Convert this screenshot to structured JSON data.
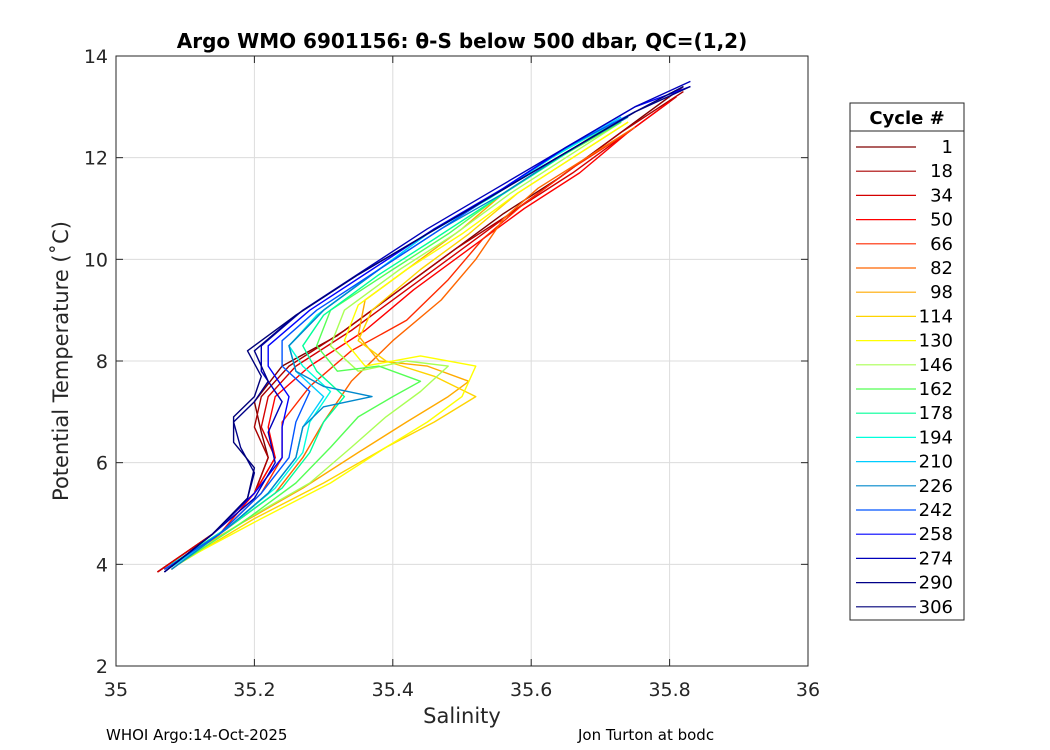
{
  "chart_data": {
    "type": "scatter",
    "title": "Argo WMO 6901156: θ-S below 500 dbar,  QC=(1,2)",
    "xlabel": "Salinity",
    "ylabel": "Potential Temperature (˚C)",
    "xlim": [
      35,
      36
    ],
    "ylim": [
      2,
      14
    ],
    "xticks": [
      "35",
      "35.2",
      "35.4",
      "35.6",
      "35.8",
      "36"
    ],
    "yticks": [
      "2",
      "4",
      "6",
      "8",
      "10",
      "12",
      "14"
    ],
    "grid": true,
    "legend_title": "Cycle #",
    "legend_position": "right",
    "series": [
      {
        "name": "1",
        "color": "#800000",
        "x": [
          35.06,
          35.14,
          35.2,
          35.22,
          35.21,
          35.2,
          35.24,
          35.32,
          35.4,
          35.48,
          35.56,
          35.64,
          35.72,
          35.82
        ],
        "y": [
          3.85,
          4.6,
          5.4,
          6.1,
          6.6,
          7.2,
          7.9,
          8.5,
          9.3,
          10.1,
          10.9,
          11.6,
          12.4,
          13.4
        ]
      },
      {
        "name": "18",
        "color": "#aa0000",
        "x": [
          35.06,
          35.14,
          35.2,
          35.22,
          35.2,
          35.21,
          35.25,
          35.33,
          35.41,
          35.49,
          35.57,
          35.65,
          35.73,
          35.82
        ],
        "y": [
          3.85,
          4.6,
          5.4,
          6.1,
          6.7,
          7.3,
          7.9,
          8.6,
          9.4,
          10.2,
          10.9,
          11.7,
          12.5,
          13.3
        ]
      },
      {
        "name": "34",
        "color": "#d40000",
        "x": [
          35.06,
          35.14,
          35.2,
          35.23,
          35.21,
          35.22,
          35.26,
          35.34,
          35.42,
          35.5,
          35.58,
          35.66,
          35.74,
          35.81
        ],
        "y": [
          3.85,
          4.6,
          5.4,
          6.1,
          6.7,
          7.3,
          7.9,
          8.6,
          9.4,
          10.2,
          11.0,
          11.7,
          12.5,
          13.2
        ]
      },
      {
        "name": "50",
        "color": "#ff0000",
        "x": [
          35.07,
          35.15,
          35.2,
          35.23,
          35.22,
          35.23,
          35.28,
          35.36,
          35.43,
          35.51,
          35.59,
          35.67,
          35.74,
          35.8
        ],
        "y": [
          3.9,
          4.6,
          5.4,
          6.1,
          6.7,
          7.3,
          7.9,
          8.6,
          9.4,
          10.2,
          11.0,
          11.7,
          12.5,
          13.1
        ]
      },
      {
        "name": "66",
        "color": "#ff2a00",
        "x": [
          35.07,
          35.15,
          35.21,
          35.24,
          35.24,
          35.28,
          35.34,
          35.42,
          35.48,
          35.53,
          35.59,
          35.66,
          35.74
        ],
        "y": [
          3.9,
          4.6,
          5.4,
          6.1,
          6.8,
          7.5,
          8.2,
          8.8,
          9.6,
          10.4,
          11.1,
          11.8,
          12.5
        ]
      },
      {
        "name": "82",
        "color": "#ff6600",
        "x": [
          35.08,
          35.16,
          35.23,
          35.27,
          35.3,
          35.34,
          35.4,
          35.47,
          35.52,
          35.56,
          35.61,
          35.68,
          35.75
        ],
        "y": [
          3.9,
          4.7,
          5.4,
          6.1,
          6.8,
          7.6,
          8.4,
          9.2,
          10.0,
          10.8,
          11.4,
          12.0,
          12.6
        ]
      },
      {
        "name": "98",
        "color": "#ffaa00",
        "x": [
          35.08,
          35.18,
          35.27,
          35.35,
          35.42,
          35.48,
          35.51,
          35.45,
          35.38,
          35.35,
          35.36,
          35.43,
          35.5,
          35.56,
          35.64,
          35.72
        ],
        "y": [
          4.0,
          4.8,
          5.5,
          6.2,
          6.8,
          7.3,
          7.6,
          7.9,
          8.0,
          8.5,
          9.2,
          9.9,
          10.6,
          11.3,
          12.0,
          12.7
        ]
      },
      {
        "name": "114",
        "color": "#ffd400",
        "x": [
          35.09,
          35.2,
          35.3,
          35.39,
          35.46,
          35.52,
          35.46,
          35.39,
          35.35,
          35.37,
          35.44,
          35.51,
          35.58,
          35.66,
          35.74
        ],
        "y": [
          4.0,
          4.9,
          5.6,
          6.3,
          6.8,
          7.3,
          7.7,
          8.0,
          8.4,
          9.0,
          9.8,
          10.5,
          11.3,
          12.0,
          12.7
        ]
      },
      {
        "name": "130",
        "color": "#ffff00",
        "x": [
          35.1,
          35.21,
          35.31,
          35.39,
          35.45,
          35.5,
          35.52,
          35.44,
          35.36,
          35.33,
          35.35,
          35.42,
          35.5,
          35.58,
          35.66,
          35.74
        ],
        "y": [
          4.1,
          4.9,
          5.6,
          6.3,
          6.8,
          7.3,
          7.9,
          8.1,
          7.9,
          8.4,
          9.1,
          9.8,
          10.5,
          11.3,
          12.0,
          12.7
        ]
      },
      {
        "name": "146",
        "color": "#aaff55",
        "x": [
          35.09,
          35.19,
          35.28,
          35.34,
          35.39,
          35.44,
          35.48,
          35.42,
          35.35,
          35.31,
          35.33,
          35.41,
          35.49,
          35.57,
          35.65,
          35.73
        ],
        "y": [
          4.0,
          4.9,
          5.6,
          6.3,
          6.9,
          7.4,
          7.9,
          8.0,
          7.8,
          8.3,
          9.0,
          9.8,
          10.5,
          11.3,
          12.0,
          12.7
        ]
      },
      {
        "name": "162",
        "color": "#55ff55",
        "x": [
          35.09,
          35.18,
          35.26,
          35.31,
          35.35,
          35.4,
          35.44,
          35.38,
          35.32,
          35.29,
          35.31,
          35.4,
          35.48,
          35.56,
          35.64,
          35.73
        ],
        "y": [
          4.0,
          4.8,
          5.6,
          6.3,
          6.9,
          7.3,
          7.6,
          7.9,
          7.8,
          8.3,
          9.0,
          9.8,
          10.5,
          11.3,
          12.0,
          12.7
        ]
      },
      {
        "name": "178",
        "color": "#00ff99",
        "x": [
          35.08,
          35.17,
          35.24,
          35.28,
          35.3,
          35.33,
          35.29,
          35.27,
          35.3,
          35.38,
          35.46,
          35.55,
          35.63,
          35.72
        ],
        "y": [
          4.0,
          4.8,
          5.5,
          6.2,
          6.8,
          7.3,
          7.8,
          8.3,
          8.9,
          9.7,
          10.4,
          11.2,
          11.9,
          12.7
        ]
      },
      {
        "name": "194",
        "color": "#00ffdd",
        "x": [
          35.08,
          35.16,
          35.23,
          35.27,
          35.28,
          35.31,
          35.27,
          35.25,
          35.29,
          35.37,
          35.45,
          35.54,
          35.63,
          35.72
        ],
        "y": [
          3.95,
          4.7,
          5.5,
          6.2,
          6.8,
          7.4,
          7.9,
          8.3,
          8.9,
          9.7,
          10.5,
          11.2,
          12.0,
          12.7
        ]
      },
      {
        "name": "210",
        "color": "#00ccff",
        "x": [
          35.08,
          35.16,
          35.22,
          35.26,
          35.27,
          35.3,
          35.26,
          35.25,
          35.3,
          35.38,
          35.46,
          35.55,
          35.64,
          35.73
        ],
        "y": [
          3.95,
          4.7,
          5.4,
          6.1,
          6.7,
          7.3,
          7.8,
          8.3,
          9.0,
          9.8,
          10.6,
          11.3,
          12.1,
          12.8
        ]
      },
      {
        "name": "226",
        "color": "#0088cc",
        "x": [
          35.08,
          35.16,
          35.22,
          35.26,
          35.27,
          35.3,
          35.37,
          35.3,
          35.26,
          35.25,
          35.3,
          35.38,
          35.47,
          35.56,
          35.65,
          35.74
        ],
        "y": [
          3.9,
          4.7,
          5.4,
          6.1,
          6.7,
          7.1,
          7.3,
          7.5,
          7.8,
          8.3,
          9.0,
          9.8,
          10.6,
          11.3,
          12.1,
          12.8
        ]
      },
      {
        "name": "242",
        "color": "#0055ff",
        "x": [
          35.07,
          35.15,
          35.21,
          35.25,
          35.26,
          35.28,
          35.24,
          35.24,
          35.29,
          35.38,
          35.47,
          35.56,
          35.65,
          35.75
        ],
        "y": [
          3.9,
          4.6,
          5.4,
          6.1,
          6.8,
          7.4,
          7.9,
          8.4,
          9.0,
          9.8,
          10.6,
          11.4,
          12.2,
          12.9
        ]
      },
      {
        "name": "258",
        "color": "#0000ff",
        "x": [
          35.07,
          35.14,
          35.2,
          35.24,
          35.24,
          35.25,
          35.22,
          35.22,
          35.28,
          35.37,
          35.46,
          35.56,
          35.65,
          35.75,
          35.83
        ],
        "y": [
          3.85,
          4.6,
          5.4,
          6.1,
          6.7,
          7.3,
          7.9,
          8.3,
          9.0,
          9.8,
          10.6,
          11.4,
          12.2,
          13.0,
          13.4
        ]
      },
      {
        "name": "274",
        "color": "#0000bb",
        "x": [
          35.07,
          35.14,
          35.2,
          35.23,
          35.22,
          35.24,
          35.21,
          35.21,
          35.27,
          35.36,
          35.45,
          35.55,
          35.65,
          35.75,
          35.83
        ],
        "y": [
          3.85,
          4.6,
          5.3,
          6.0,
          6.6,
          7.2,
          7.8,
          8.3,
          9.0,
          9.8,
          10.6,
          11.4,
          12.2,
          13.0,
          13.5
        ]
      },
      {
        "name": "290",
        "color": "#000088",
        "x": [
          35.07,
          35.14,
          35.19,
          35.2,
          35.18,
          35.17,
          35.2,
          35.22,
          35.2,
          35.26,
          35.35,
          35.45,
          35.55,
          35.65,
          35.75,
          35.83
        ],
        "y": [
          3.85,
          4.6,
          5.3,
          5.8,
          6.3,
          6.8,
          7.2,
          7.6,
          8.2,
          8.9,
          9.7,
          10.5,
          11.3,
          12.1,
          12.9,
          13.4
        ]
      },
      {
        "name": "306",
        "color": "#00007a",
        "x": [
          35.07,
          35.14,
          35.19,
          35.2,
          35.17,
          35.17,
          35.2,
          35.21,
          35.19,
          35.26,
          35.35,
          35.45,
          35.55,
          35.65,
          35.75,
          35.82
        ],
        "y": [
          3.85,
          4.6,
          5.3,
          5.9,
          6.4,
          6.9,
          7.3,
          7.7,
          8.2,
          8.9,
          9.7,
          10.5,
          11.3,
          12.1,
          12.9,
          13.4
        ]
      }
    ]
  },
  "footer": {
    "left": "WHOI Argo:14-Oct-2025",
    "right": "Jon Turton at bodc"
  }
}
